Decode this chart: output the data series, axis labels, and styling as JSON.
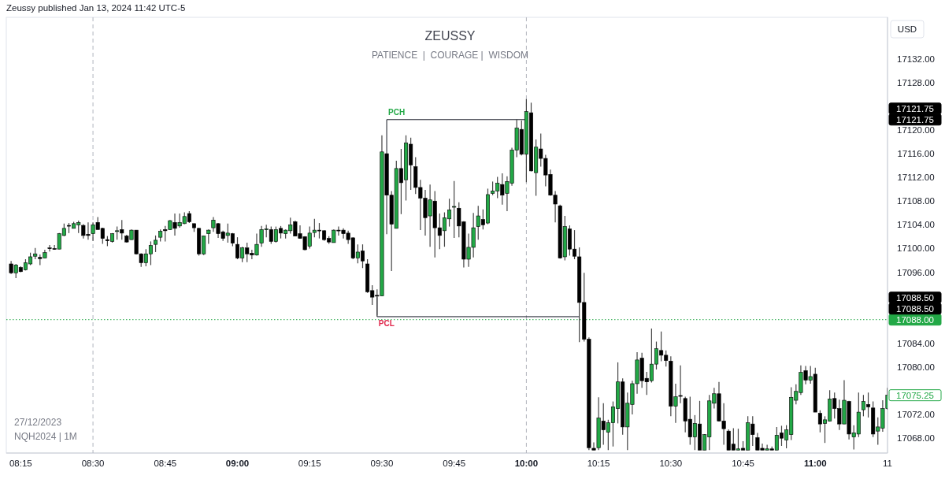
{
  "chart_data": {
    "type": "candlestick",
    "title": "ZEUSSY",
    "subtitle": "PATIENCE  |  COURAGE |  WISDOM",
    "ylabel": "USD",
    "annotations": [
      "Zeussy published Jan 13, 2024 11:42 UTC-5",
      "27/12/2023",
      "NQH2024 | 1M",
      {
        "text": "PCH",
        "x": "2023-12-27T09:31",
        "y": 17121.75
      },
      {
        "text": "PCL",
        "x": "2023-12-27T09:29",
        "y": 17088.5
      },
      "17121.75",
      "17121.75",
      "17088.50",
      "17088.50",
      "17075.25"
    ],
    "colors": [
      "#000000",
      "#22a846",
      "#000000",
      "#22a846",
      "#22a846",
      "#22a846",
      "#000000",
      "#22a846",
      "#000000",
      "#000000",
      "#22a846",
      "#22a846",
      "#000000",
      "#22a846",
      "#22a846",
      "#000000",
      "#000000",
      "#22a846",
      "#000000",
      "#000000",
      "#000000",
      "#22a846",
      "#22a846",
      "#000000",
      "#000000",
      "#22a846",
      "#000000",
      "#000000",
      "#22a846",
      "#22a846",
      "#22a846",
      "#22a846",
      "#000000",
      "#22a846",
      "#000000",
      "#22a846",
      "#22a846",
      "#000000",
      "#000000",
      "#000000",
      "#22a846",
      "#22a846",
      "#22a846",
      "#000000",
      "#000000",
      "#22a846",
      "#000000",
      "#000000",
      "#22a846",
      "#000000",
      "#000000",
      "#22a846",
      "#22a846",
      "#22a846",
      "#000000",
      "#22a846",
      "#000000",
      "#22a846",
      "#22a846",
      "#000000",
      "#000000",
      "#000000",
      "#22a846",
      "#22a846",
      "#000000",
      "#000000",
      "#000000",
      "#22a846",
      "#000000",
      "#000000",
      "#000000",
      "#000000",
      "#22a846",
      "#000000",
      "#000000",
      "#000000",
      "#000000",
      "#22a846",
      "#000000",
      "#000000",
      "#22a846",
      "#000000",
      "#22a846",
      "#000000",
      "#000000",
      "#000000",
      "#000000",
      "#22a846",
      "#000000",
      "#000000",
      "#22a846",
      "#22a846",
      "#22a846",
      "#000000",
      "#000000",
      "#22a846",
      "#22a846",
      "#22a846",
      "#000000",
      "#22a846",
      "#22a846",
      "#22a846",
      "#000000",
      "#22a846",
      "#22a846",
      "#22a846",
      "#000000",
      "#22a846",
      "#000000",
      "#22a846",
      "#000000",
      "#000000",
      "#000000",
      "#000000",
      "#000000",
      "#22a846",
      "#000000",
      "#000000",
      "#000000",
      "#000000",
      "#000000",
      "#000000",
      "#22a846",
      "#000000",
      "#22a846",
      "#22a846",
      "#22a846",
      "#000000",
      "#22a846",
      "#22a846",
      "#22a846",
      "#000000",
      "#000000",
      "#22a846",
      "#22a846",
      "#000000",
      "#000000",
      "#000000",
      "#22a846",
      "#000000",
      "#000000",
      "#000000",
      "#22a846",
      "#000000",
      "#22a846",
      "#22a846",
      "#22a846",
      "#000000",
      "#000000",
      "#000000",
      "#000000",
      "#22a846",
      "#000000",
      "#22a846",
      "#000000",
      "#000000",
      "#000000",
      "#22a846",
      "#000000",
      "#22a846",
      "#000000",
      "#22a846",
      "#22a846",
      "#22a846",
      "#22a846",
      "#000000",
      "#22a846",
      "#000000",
      "#000000",
      "#22a846",
      "#22a846",
      "#000000",
      "#000000",
      "#22a846",
      "#000000",
      "#22a846",
      "#22a846",
      "#22a846",
      "#000000",
      "#000000",
      "#22a846",
      "#22a846",
      "#22a846"
    ],
    "xlim": [
      "2023-12-27T08:12",
      "2023-12-27T11:15"
    ],
    "xticks": [
      {
        "value": "2023-12-27T08:15",
        "label": "08:15"
      },
      {
        "value": "2023-12-27T08:30",
        "label": "08:30"
      },
      {
        "value": "2023-12-27T08:45",
        "label": "08:45"
      },
      {
        "value": "2023-12-27T09:00",
        "label": "09:00"
      },
      {
        "value": "2023-12-27T09:15",
        "label": "09:15"
      },
      {
        "value": "2023-12-27T09:30",
        "label": "09:30"
      },
      {
        "value": "2023-12-27T09:45",
        "label": "09:45"
      },
      {
        "value": "2023-12-27T10:00",
        "label": "10:00"
      },
      {
        "value": "2023-12-27T10:15",
        "label": "10:15"
      },
      {
        "value": "2023-12-27T10:30",
        "label": "10:30"
      },
      {
        "value": "2023-12-27T10:45",
        "label": "10:45"
      },
      {
        "value": "2023-12-27T11:00",
        "label": "11:00"
      },
      {
        "value": "2023-12-27T11:15",
        "label": "11"
      }
    ],
    "ylim": [
      17065.5,
      17139
    ],
    "yticks": [
      {
        "value": 17068,
        "label": "17068.00"
      },
      {
        "value": 17072,
        "label": "17072.00"
      },
      {
        "value": 17080,
        "label": "17080.00"
      },
      {
        "value": 17084,
        "label": "17084.00"
      },
      {
        "value": 17096,
        "label": "17096.00"
      },
      {
        "value": 17100,
        "label": "17100.00"
      },
      {
        "value": 17104,
        "label": "17104.00"
      },
      {
        "value": 17108,
        "label": "17108.00"
      },
      {
        "value": 17112,
        "label": "17112.00"
      },
      {
        "value": 17116,
        "label": "17116.00"
      },
      {
        "value": 17120,
        "label": "17120.00"
      },
      {
        "value": 17128,
        "label": "17128.00"
      },
      {
        "value": 17132,
        "label": "17132.00"
      }
    ],
    "ref_lines": [
      {
        "axis": "x",
        "value": "2023-12-27T08:30",
        "label": null,
        "color": "#b2b5be",
        "line_style": "dashed"
      },
      {
        "axis": "x",
        "value": "2023-12-27T10:00",
        "label": null,
        "color": "#b2b5be",
        "line_style": "dashed"
      },
      {
        "axis": "y",
        "value": 17088,
        "label": "17088.00",
        "color": "#22a846",
        "line_style": "dotted"
      }
    ],
    "series": [
      {
        "type": "line",
        "color": "#131722",
        "x": [
          "2023-12-27T09:31",
          "2023-12-27T09:31",
          "2023-12-27T10:00"
        ],
        "values": [
          17116.3,
          17121.75,
          17121.75
        ]
      },
      {
        "type": "line",
        "color": "#131722",
        "x": [
          "2023-12-27T09:29",
          "2023-12-27T09:29",
          "2023-12-27T10:11"
        ],
        "values": [
          17091.8,
          17088.5,
          17088.5
        ]
      }
    ],
    "x": [
      "2023-12-27T08:13",
      "2023-12-27T08:14",
      "2023-12-27T08:15",
      "2023-12-27T08:16",
      "2023-12-27T08:17",
      "2023-12-27T08:18",
      "2023-12-27T08:19",
      "2023-12-27T08:20",
      "2023-12-27T08:21",
      "2023-12-27T08:22",
      "2023-12-27T08:23",
      "2023-12-27T08:24",
      "2023-12-27T08:25",
      "2023-12-27T08:26",
      "2023-12-27T08:27",
      "2023-12-27T08:28",
      "2023-12-27T08:29",
      "2023-12-27T08:30",
      "2023-12-27T08:31",
      "2023-12-27T08:32",
      "2023-12-27T08:33",
      "2023-12-27T08:34",
      "2023-12-27T08:35",
      "2023-12-27T08:36",
      "2023-12-27T08:37",
      "2023-12-27T08:38",
      "2023-12-27T08:39",
      "2023-12-27T08:40",
      "2023-12-27T08:41",
      "2023-12-27T08:42",
      "2023-12-27T08:43",
      "2023-12-27T08:44",
      "2023-12-27T08:45",
      "2023-12-27T08:46",
      "2023-12-27T08:47",
      "2023-12-27T08:48",
      "2023-12-27T08:49",
      "2023-12-27T08:50",
      "2023-12-27T08:51",
      "2023-12-27T08:52",
      "2023-12-27T08:53",
      "2023-12-27T08:54",
      "2023-12-27T08:55",
      "2023-12-27T08:56",
      "2023-12-27T08:57",
      "2023-12-27T08:58",
      "2023-12-27T08:59",
      "2023-12-27T09:00",
      "2023-12-27T09:01",
      "2023-12-27T09:02",
      "2023-12-27T09:03",
      "2023-12-27T09:04",
      "2023-12-27T09:05",
      "2023-12-27T09:06",
      "2023-12-27T09:07",
      "2023-12-27T09:08",
      "2023-12-27T09:09",
      "2023-12-27T09:10",
      "2023-12-27T09:11",
      "2023-12-27T09:12",
      "2023-12-27T09:13",
      "2023-12-27T09:14",
      "2023-12-27T09:15",
      "2023-12-27T09:16",
      "2023-12-27T09:17",
      "2023-12-27T09:18",
      "2023-12-27T09:19",
      "2023-12-27T09:20",
      "2023-12-27T09:21",
      "2023-12-27T09:22",
      "2023-12-27T09:23",
      "2023-12-27T09:24",
      "2023-12-27T09:25",
      "2023-12-27T09:26",
      "2023-12-27T09:27",
      "2023-12-27T09:28",
      "2023-12-27T09:29",
      "2023-12-27T09:30",
      "2023-12-27T09:31",
      "2023-12-27T09:32",
      "2023-12-27T09:33",
      "2023-12-27T09:34",
      "2023-12-27T09:35",
      "2023-12-27T09:36",
      "2023-12-27T09:37",
      "2023-12-27T09:38",
      "2023-12-27T09:39",
      "2023-12-27T09:40",
      "2023-12-27T09:41",
      "2023-12-27T09:42",
      "2023-12-27T09:43",
      "2023-12-27T09:44",
      "2023-12-27T09:45",
      "2023-12-27T09:46",
      "2023-12-27T09:47",
      "2023-12-27T09:48",
      "2023-12-27T09:49",
      "2023-12-27T09:50",
      "2023-12-27T09:51",
      "2023-12-27T09:52",
      "2023-12-27T09:53",
      "2023-12-27T09:54",
      "2023-12-27T09:55",
      "2023-12-27T09:56",
      "2023-12-27T09:57",
      "2023-12-27T09:58",
      "2023-12-27T09:59",
      "2023-12-27T10:00",
      "2023-12-27T10:01",
      "2023-12-27T10:02",
      "2023-12-27T10:03",
      "2023-12-27T10:04",
      "2023-12-27T10:05",
      "2023-12-27T10:06",
      "2023-12-27T10:07",
      "2023-12-27T10:08",
      "2023-12-27T10:09",
      "2023-12-27T10:10",
      "2023-12-27T10:11",
      "2023-12-27T10:12",
      "2023-12-27T10:13",
      "2023-12-27T10:14",
      "2023-12-27T10:15",
      "2023-12-27T10:16",
      "2023-12-27T10:17",
      "2023-12-27T10:18",
      "2023-12-27T10:19",
      "2023-12-27T10:20",
      "2023-12-27T10:21",
      "2023-12-27T10:22",
      "2023-12-27T10:23",
      "2023-12-27T10:24",
      "2023-12-27T10:25",
      "2023-12-27T10:26",
      "2023-12-27T10:27",
      "2023-12-27T10:28",
      "2023-12-27T10:29",
      "2023-12-27T10:30",
      "2023-12-27T10:31",
      "2023-12-27T10:32",
      "2023-12-27T10:33",
      "2023-12-27T10:34",
      "2023-12-27T10:35",
      "2023-12-27T10:36",
      "2023-12-27T10:37",
      "2023-12-27T10:38",
      "2023-12-27T10:39",
      "2023-12-27T10:40",
      "2023-12-27T10:41",
      "2023-12-27T10:42",
      "2023-12-27T10:43",
      "2023-12-27T10:44",
      "2023-12-27T10:45",
      "2023-12-27T10:46",
      "2023-12-27T10:47",
      "2023-12-27T10:48",
      "2023-12-27T10:49",
      "2023-12-27T10:50",
      "2023-12-27T10:51",
      "2023-12-27T10:52",
      "2023-12-27T10:53",
      "2023-12-27T10:54",
      "2023-12-27T10:55",
      "2023-12-27T10:56",
      "2023-12-27T10:57",
      "2023-12-27T10:58",
      "2023-12-27T10:59",
      "2023-12-27T11:00",
      "2023-12-27T11:01",
      "2023-12-27T11:02",
      "2023-12-27T11:03",
      "2023-12-27T11:04",
      "2023-12-27T11:05",
      "2023-12-27T11:06",
      "2023-12-27T11:07",
      "2023-12-27T11:08",
      "2023-12-27T11:09",
      "2023-12-27T11:10",
      "2023-12-27T11:11",
      "2023-12-27T11:12",
      "2023-12-27T11:13",
      "2023-12-27T11:14",
      "2023-12-27T11:15"
    ],
    "ohlc": [
      [
        17097.4,
        17097.9,
        17095.7,
        17095.9
      ],
      [
        17095.9,
        17097.4,
        17095.0,
        17097.2
      ],
      [
        17096.8,
        17097.0,
        17096.0,
        17096.1
      ],
      [
        17096.4,
        17098.2,
        17096.3,
        17097.6
      ],
      [
        17097.4,
        17099.3,
        17097.2,
        17098.6
      ],
      [
        17098.7,
        17100.1,
        17098.2,
        17099.1
      ],
      [
        17098.5,
        17099.0,
        17097.2,
        17098.3
      ],
      [
        17098.4,
        17099.8,
        17098.4,
        17099.3
      ],
      [
        17100.1,
        17100.6,
        17099.5,
        17100.0
      ],
      [
        17100.0,
        17100.6,
        17099.8,
        17099.9
      ],
      [
        17099.9,
        17102.6,
        17099.9,
        17102.5
      ],
      [
        17102.2,
        17104.2,
        17102.1,
        17103.4
      ],
      [
        17103.9,
        17104.3,
        17102.6,
        17103.9
      ],
      [
        17103.4,
        17104.5,
        17103.4,
        17104.2
      ],
      [
        17104.0,
        17104.7,
        17102.6,
        17104.4
      ],
      [
        17103.9,
        17104.1,
        17101.7,
        17102.2
      ],
      [
        17102.4,
        17104.4,
        17101.5,
        17102.2
      ],
      [
        17102.5,
        17104.4,
        17101.3,
        17104.0
      ],
      [
        17104.4,
        17105.3,
        17103.2,
        17103.2
      ],
      [
        17103.4,
        17103.5,
        17100.8,
        17101.7
      ],
      [
        17101.5,
        17102.1,
        17100.4,
        17101.3
      ],
      [
        17101.2,
        17102.6,
        17101.0,
        17102.5
      ],
      [
        17102.9,
        17103.7,
        17101.5,
        17103.0
      ],
      [
        17103.2,
        17104.8,
        17101.5,
        17102.6
      ],
      [
        17102.1,
        17102.3,
        17101.0,
        17101.1
      ],
      [
        17101.5,
        17103.2,
        17101.5,
        17103.1
      ],
      [
        17103.1,
        17103.1,
        17099.0,
        17099.1
      ],
      [
        17099.1,
        17099.2,
        17096.9,
        17097.6
      ],
      [
        17097.6,
        17099.9,
        17097.0,
        17099.1
      ],
      [
        17099.1,
        17101.2,
        17097.2,
        17100.5
      ],
      [
        17100.7,
        17102.2,
        17099.4,
        17101.4
      ],
      [
        17101.9,
        17103.2,
        17101.2,
        17102.9
      ],
      [
        17103.2,
        17103.8,
        17101.2,
        17103.0
      ],
      [
        17103.2,
        17104.8,
        17103.1,
        17104.7
      ],
      [
        17104.4,
        17105.9,
        17102.2,
        17103.4
      ],
      [
        17103.8,
        17105.9,
        17103.5,
        17104.4
      ],
      [
        17104.2,
        17106.1,
        17104.1,
        17105.4
      ],
      [
        17105.9,
        17106.3,
        17104.3,
        17104.5
      ],
      [
        17104.2,
        17104.2,
        17102.8,
        17103.5
      ],
      [
        17103.4,
        17103.5,
        17098.8,
        17099.1
      ],
      [
        17099.1,
        17102.2,
        17098.9,
        17102.1
      ],
      [
        17102.5,
        17103.2,
        17100.8,
        17103.1
      ],
      [
        17103.5,
        17105.3,
        17102.8,
        17104.8
      ],
      [
        17104.2,
        17104.3,
        17101.8,
        17102.5
      ],
      [
        17102.8,
        17103.0,
        17101.3,
        17101.7
      ],
      [
        17102.2,
        17104.2,
        17101.0,
        17102.6
      ],
      [
        17102.5,
        17102.6,
        17100.4,
        17100.9
      ],
      [
        17100.7,
        17101.9,
        17098.2,
        17098.4
      ],
      [
        17098.4,
        17100.3,
        17097.7,
        17100.1
      ],
      [
        17100.1,
        17101.0,
        17097.7,
        17099.1
      ],
      [
        17099.2,
        17099.8,
        17098.2,
        17098.9
      ],
      [
        17098.9,
        17102.5,
        17098.8,
        17100.7
      ],
      [
        17100.9,
        17103.8,
        17100.3,
        17103.2
      ],
      [
        17103.2,
        17104.0,
        17101.9,
        17103.3
      ],
      [
        17103.2,
        17103.7,
        17100.8,
        17101.2
      ],
      [
        17101.2,
        17103.7,
        17101.0,
        17103.2
      ],
      [
        17103.4,
        17103.8,
        17101.7,
        17102.6
      ],
      [
        17102.5,
        17103.2,
        17101.7,
        17103.1
      ],
      [
        17103.0,
        17105.2,
        17102.5,
        17104.0
      ],
      [
        17104.5,
        17104.7,
        17102.1,
        17102.1
      ],
      [
        17102.5,
        17103.9,
        17101.7,
        17101.7
      ],
      [
        17102.0,
        17102.1,
        17099.7,
        17099.8
      ],
      [
        17100.4,
        17103.7,
        17100.0,
        17102.6
      ],
      [
        17102.7,
        17105.0,
        17101.9,
        17103.1
      ],
      [
        17103.1,
        17104.3,
        17101.7,
        17103.0
      ],
      [
        17103.0,
        17103.1,
        17101.3,
        17101.5
      ],
      [
        17101.7,
        17102.1,
        17100.8,
        17101.1
      ],
      [
        17101.0,
        17103.2,
        17101.0,
        17103.1
      ],
      [
        17103.1,
        17103.7,
        17102.2,
        17103.0
      ],
      [
        17103.1,
        17103.4,
        17101.7,
        17102.5
      ],
      [
        17102.6,
        17103.0,
        17100.8,
        17101.5
      ],
      [
        17101.8,
        17101.9,
        17098.2,
        17098.4
      ],
      [
        17098.4,
        17100.7,
        17097.5,
        17099.4
      ],
      [
        17099.6,
        17100.7,
        17096.7,
        17097.9
      ],
      [
        17097.4,
        17098.2,
        17092.5,
        17092.7
      ],
      [
        17092.9,
        17093.8,
        17090.5,
        17091.8
      ],
      [
        17092.1,
        17093.1,
        17088.7,
        17092.0
      ],
      [
        17092.0,
        17119.1,
        17092.0,
        17116.3
      ],
      [
        17116.0,
        17116.3,
        17102.4,
        17109.0
      ],
      [
        17109.0,
        17109.7,
        17096.2,
        17104.1
      ],
      [
        17103.4,
        17114.8,
        17103.4,
        17113.5
      ],
      [
        17113.5,
        17116.8,
        17105.8,
        17111.1
      ],
      [
        17111.6,
        17119.1,
        17108.1,
        17117.8
      ],
      [
        17117.6,
        17118.7,
        17109.9,
        17114.1
      ],
      [
        17113.8,
        17115.4,
        17109.2,
        17110.3
      ],
      [
        17110.3,
        17111.6,
        17103.1,
        17108.5
      ],
      [
        17108.5,
        17109.9,
        17102.2,
        17105.2
      ],
      [
        17105.5,
        17110.8,
        17100.3,
        17108.2
      ],
      [
        17108.0,
        17109.7,
        17098.5,
        17103.5
      ],
      [
        17103.5,
        17105.9,
        17099.9,
        17102.2
      ],
      [
        17103.0,
        17106.1,
        17100.3,
        17105.2
      ],
      [
        17105.0,
        17108.4,
        17103.7,
        17106.5
      ],
      [
        17107.0,
        17111.4,
        17101.8,
        17107.1
      ],
      [
        17106.8,
        17107.8,
        17101.9,
        17103.8
      ],
      [
        17104.5,
        17104.6,
        17096.8,
        17098.2
      ],
      [
        17098.2,
        17102.5,
        17096.9,
        17100.2
      ],
      [
        17100.2,
        17106.0,
        17098.5,
        17103.5
      ],
      [
        17103.7,
        17107.2,
        17101.5,
        17105.5
      ],
      [
        17104.9,
        17106.6,
        17103.2,
        17104.0
      ],
      [
        17104.3,
        17110.1,
        17104.1,
        17109.1
      ],
      [
        17109.3,
        17111.3,
        17109.0,
        17109.7
      ],
      [
        17109.7,
        17112.1,
        17108.5,
        17111.0
      ],
      [
        17110.8,
        17112.7,
        17107.4,
        17109.0
      ],
      [
        17109.3,
        17112.2,
        17106.3,
        17111.3
      ],
      [
        17111.0,
        17117.0,
        17110.6,
        17116.6
      ],
      [
        17116.6,
        17121.8,
        17115.4,
        17120.3
      ],
      [
        17120.1,
        17121.6,
        17115.7,
        17115.9
      ],
      [
        17115.9,
        17125.2,
        17111.2,
        17123.1
      ],
      [
        17122.9,
        17124.6,
        17113.0,
        17113.1
      ],
      [
        17112.8,
        17118.4,
        17108.9,
        17117.1
      ],
      [
        17116.8,
        17119.4,
        17113.8,
        17115.2
      ],
      [
        17115.2,
        17115.8,
        17110.5,
        17112.4
      ],
      [
        17112.5,
        17113.3,
        17108.9,
        17109.0
      ],
      [
        17109.0,
        17109.7,
        17104.4,
        17107.5
      ],
      [
        17107.2,
        17107.4,
        17098.3,
        17098.4
      ],
      [
        17098.6,
        17105.5,
        17098.0,
        17103.7
      ],
      [
        17103.3,
        17103.9,
        17098.8,
        17099.9
      ],
      [
        17099.9,
        17103.1,
        17098.2,
        17098.7
      ],
      [
        17098.6,
        17100.2,
        17084.2,
        17090.9
      ],
      [
        17090.9,
        17095.9,
        17084.3,
        17084.7
      ],
      [
        17084.7,
        17085.0,
        17066.0,
        17066.4
      ],
      [
        17066.3,
        17067.3,
        17066.0,
        17066.0
      ],
      [
        17066.4,
        17074.9,
        17066.0,
        17071.4
      ],
      [
        17070.9,
        17073.9,
        17066.9,
        17069.4
      ],
      [
        17069.0,
        17071.1,
        17066.0,
        17070.6
      ],
      [
        17070.6,
        17074.2,
        17066.6,
        17073.3
      ],
      [
        17073.0,
        17080.8,
        17070.5,
        17077.5
      ],
      [
        17077.5,
        17078.1,
        17068.6,
        17069.9
      ],
      [
        17069.9,
        17075.7,
        17066.0,
        17073.9
      ],
      [
        17073.7,
        17077.7,
        17072.0,
        17077.2
      ],
      [
        17077.2,
        17082.5,
        17075.5,
        17081.2
      ],
      [
        17081.5,
        17082.4,
        17076.5,
        17077.7
      ],
      [
        17078.1,
        17079.2,
        17075.3,
        17077.5
      ],
      [
        17077.7,
        17086.5,
        17077.4,
        17080.5
      ],
      [
        17080.5,
        17084.3,
        17079.6,
        17083.1
      ],
      [
        17082.8,
        17086.0,
        17081.0,
        17082.0
      ],
      [
        17082.0,
        17082.8,
        17080.1,
        17081.1
      ],
      [
        17081.0,
        17081.8,
        17071.7,
        17073.4
      ],
      [
        17073.4,
        17077.2,
        17070.6,
        17075.0
      ],
      [
        17075.2,
        17080.3,
        17073.9,
        17075.1
      ],
      [
        17074.7,
        17075.0,
        17069.0,
        17070.9
      ],
      [
        17071.2,
        17075.0,
        17066.9,
        17068.2
      ],
      [
        17068.2,
        17071.9,
        17066.0,
        17070.5
      ],
      [
        17070.4,
        17074.3,
        17066.0,
        17066.0
      ],
      [
        17066.0,
        17068.7,
        17066.0,
        17068.6
      ],
      [
        17068.2,
        17075.3,
        17066.0,
        17074.3
      ],
      [
        17073.9,
        17076.5,
        17073.0,
        17075.5
      ],
      [
        17075.5,
        17077.5,
        17070.8,
        17070.9
      ],
      [
        17070.9,
        17073.9,
        17066.9,
        17069.6
      ],
      [
        17069.2,
        17069.5,
        17066.0,
        17066.0
      ],
      [
        17067.0,
        17069.7,
        17066.0,
        17066.0
      ],
      [
        17066.0,
        17069.6,
        17066.0,
        17066.2
      ],
      [
        17066.3,
        17067.5,
        17066.0,
        17066.0
      ],
      [
        17066.0,
        17071.7,
        17066.0,
        17070.6
      ],
      [
        17070.4,
        17071.7,
        17066.7,
        17068.6
      ],
      [
        17068.1,
        17068.9,
        17066.0,
        17066.0
      ],
      [
        17066.3,
        17067.1,
        17066.0,
        17066.0
      ],
      [
        17066.0,
        17066.9,
        17066.0,
        17066.2
      ],
      [
        17066.2,
        17066.6,
        17066.0,
        17066.0
      ],
      [
        17066.0,
        17069.9,
        17066.0,
        17068.5
      ],
      [
        17068.9,
        17070.1,
        17066.7,
        17068.0
      ],
      [
        17067.7,
        17070.2,
        17066.3,
        17069.4
      ],
      [
        17068.6,
        17076.6,
        17067.7,
        17074.9
      ],
      [
        17074.4,
        17077.1,
        17073.7,
        17075.9
      ],
      [
        17075.7,
        17080.3,
        17075.3,
        17079.1
      ],
      [
        17079.4,
        17080.2,
        17077.1,
        17077.8
      ],
      [
        17077.8,
        17080.2,
        17077.2,
        17078.4
      ],
      [
        17078.8,
        17079.9,
        17072.4,
        17072.4
      ],
      [
        17072.2,
        17072.7,
        17069.0,
        17070.4
      ],
      [
        17070.5,
        17071.7,
        17067.2,
        17071.1
      ],
      [
        17070.9,
        17076.1,
        17070.8,
        17074.6
      ],
      [
        17074.7,
        17075.7,
        17071.3,
        17073.0
      ],
      [
        17073.0,
        17074.5,
        17069.4,
        17070.4
      ],
      [
        17070.4,
        17077.8,
        17070.4,
        17074.4
      ],
      [
        17074.2,
        17074.3,
        17067.8,
        17068.7
      ],
      [
        17068.2,
        17070.2,
        17066.1,
        17068.9
      ],
      [
        17068.7,
        17075.7,
        17068.2,
        17072.4
      ],
      [
        17072.8,
        17075.3,
        17071.7,
        17074.2
      ],
      [
        17073.7,
        17075.7,
        17071.5,
        17073.3
      ],
      [
        17073.1,
        17074.2,
        17068.2,
        17068.7
      ],
      [
        17069.2,
        17071.5,
        17066.9,
        17069.9
      ],
      [
        17069.7,
        17074.4,
        17069.1,
        17073.0
      ],
      [
        17073.0,
        17076.5,
        17072.8,
        17075.25
      ]
    ]
  }
}
